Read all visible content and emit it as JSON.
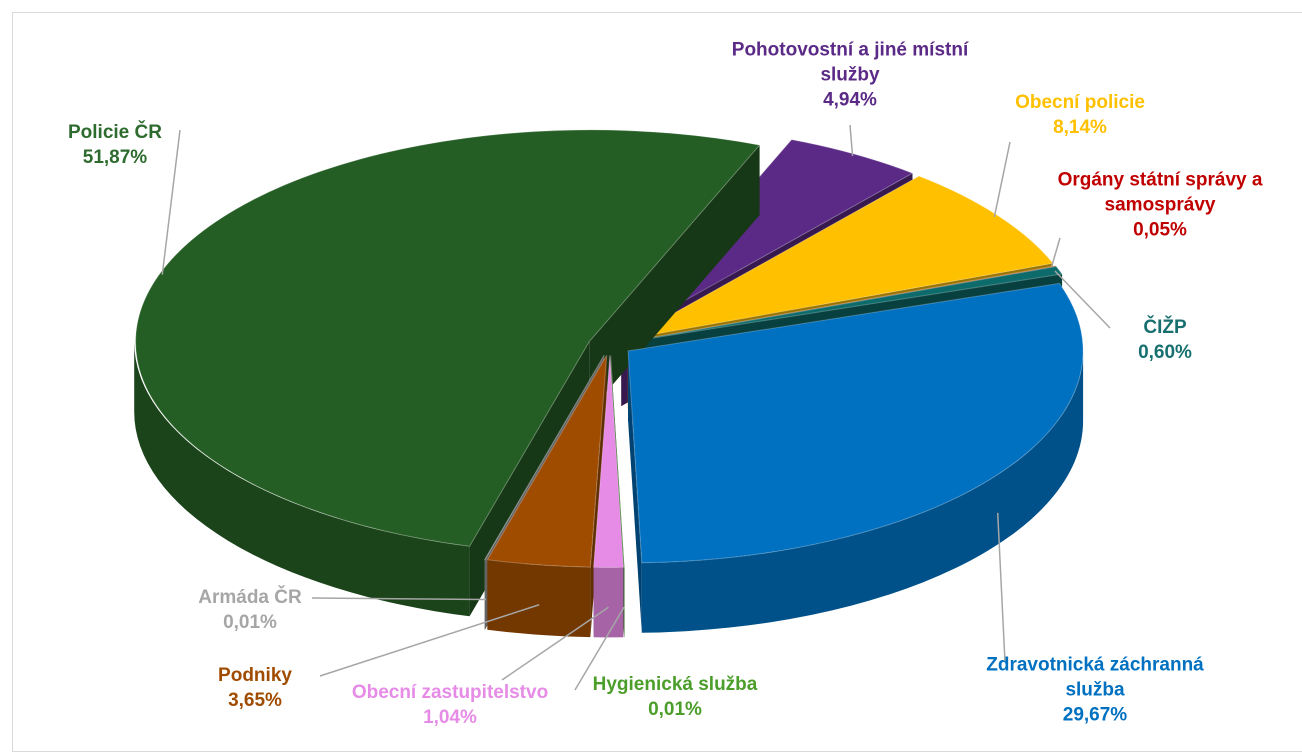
{
  "chart_data": {
    "type": "pie",
    "categories": [
      "Pohotovostní a jiné místní služby",
      "Obecní policie",
      "Orgány státní správy a samosprávy",
      "ČIŽP",
      "Zdravotnická záchranná služba",
      "Hygienická služba",
      "Obecní zastupitelstvo",
      "Podniky",
      "Armáda ČR",
      "Policie ČR"
    ],
    "values": [
      4.94,
      8.14,
      0.05,
      0.6,
      29.67,
      0.01,
      1.04,
      3.65,
      0.01,
      51.87
    ],
    "value_labels": [
      "4,94%",
      "8,14%",
      "0,05%",
      "0,60%",
      "29,67%",
      "0,01%",
      "1,04%",
      "3,65%",
      "0,01%",
      "51,87%"
    ],
    "colors": [
      "#5b2a86",
      "#ffc000",
      "#c55a11",
      "#0e6b6b",
      "#0070c0",
      "#38901e",
      "#e68be6",
      "#a04c00",
      "#a6a6a6",
      "#255e24"
    ],
    "label_colors": [
      "#5b2a86",
      "#ffc000",
      "#c00000",
      "#17706f",
      "#0070c0",
      "#4b9e2a",
      "#e68be6",
      "#a04c00",
      "#a6a6a6",
      "#2e6b2e"
    ]
  }
}
